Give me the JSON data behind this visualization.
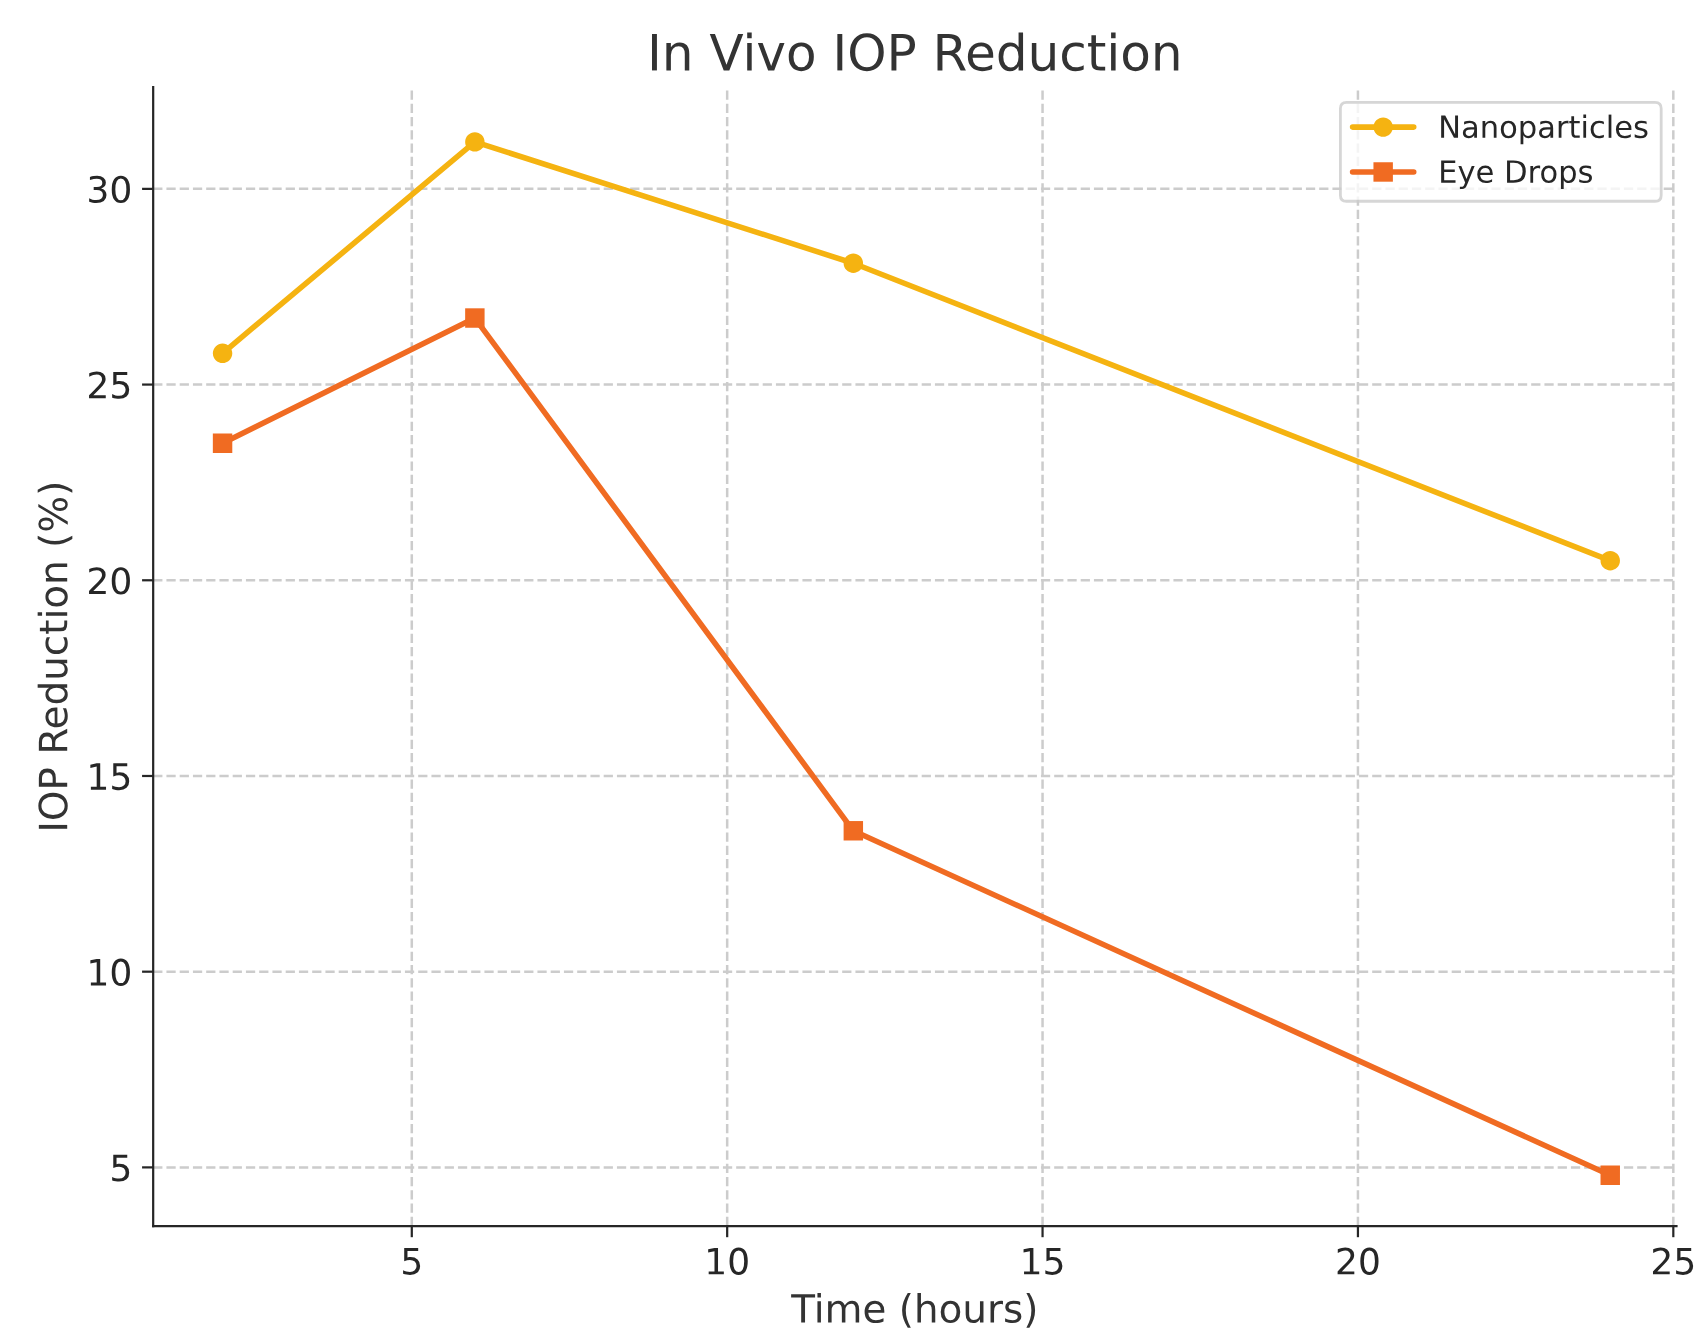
{
  "chart_data": {
    "type": "line",
    "title": "In Vivo IOP Reduction",
    "xlabel": "Time (hours)",
    "ylabel": "IOP Reduction (%)",
    "x": [
      2,
      6,
      12,
      24
    ],
    "series": [
      {
        "name": "Nanoparticles",
        "color": "#f5b311",
        "values": [
          25.8,
          31.2,
          28.1,
          20.5
        ],
        "marker": "circle"
      },
      {
        "name": "Eye Drops",
        "color": "#f06b22",
        "values": [
          23.5,
          26.7,
          13.6,
          4.8
        ],
        "marker": "square"
      }
    ],
    "xlim": [
      0.9,
      25.05
    ],
    "xticks": [
      5,
      10,
      15,
      20,
      25
    ],
    "ylim": [
      3.5,
      32.6
    ],
    "yticks": [
      5,
      10,
      15,
      20,
      25,
      30
    ],
    "grid": true,
    "legend": "top right",
    "line_style": "solid"
  }
}
